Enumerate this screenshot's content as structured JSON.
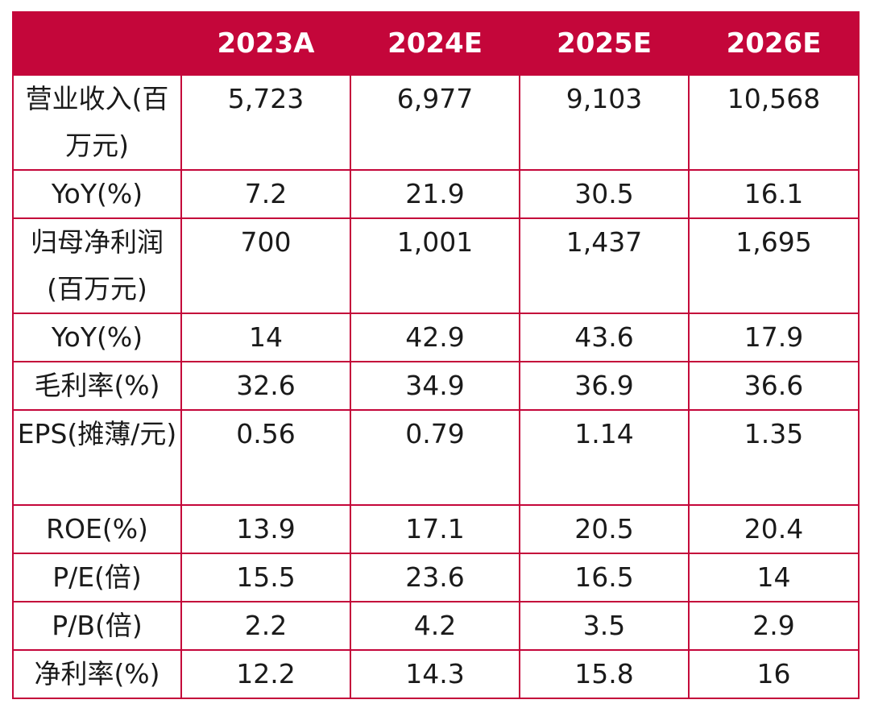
{
  "table": {
    "header": [
      "",
      "2023A",
      "2024E",
      "2025E",
      "2026E"
    ],
    "rows": [
      {
        "label": "营业收入(百万元)",
        "values": [
          "5,723",
          "6,977",
          "9,103",
          "10,568"
        ]
      },
      {
        "label": "YoY(%)",
        "values": [
          "7.2",
          "21.9",
          "30.5",
          "16.1"
        ]
      },
      {
        "label": "归母净利润(百万元)",
        "values": [
          "700",
          "1,001",
          "1,437",
          "1,695"
        ]
      },
      {
        "label": "YoY(%)",
        "values": [
          "14",
          "42.9",
          "43.6",
          "17.9"
        ]
      },
      {
        "label": "毛利率(%)",
        "values": [
          "32.6",
          "34.9",
          "36.9",
          "36.6"
        ]
      },
      {
        "label": "EPS(摊薄/元)",
        "values": [
          "0.56",
          "0.79",
          "1.14",
          "1.35"
        ]
      },
      {
        "label": "ROE(%)",
        "values": [
          "13.9",
          "17.1",
          "20.5",
          "20.4"
        ]
      },
      {
        "label": "P/E(倍)",
        "values": [
          "15.5",
          "23.6",
          "16.5",
          "14"
        ]
      },
      {
        "label": "P/B(倍)",
        "values": [
          "2.2",
          "4.2",
          "3.5",
          "2.9"
        ]
      },
      {
        "label": "净利率(%)",
        "values": [
          "12.2",
          "14.3",
          "15.8",
          "16"
        ]
      }
    ]
  },
  "colors": {
    "header_bg": "#c4063a",
    "border": "#c4063a",
    "header_text": "#ffffff"
  }
}
